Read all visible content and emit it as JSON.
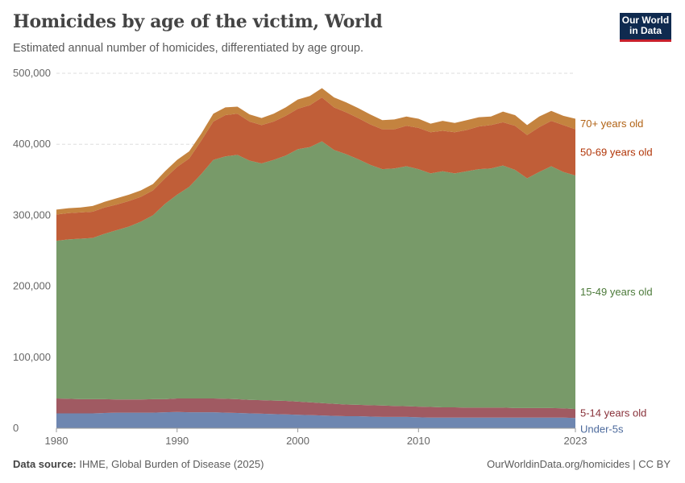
{
  "title": "Homicides by age of the victim, World",
  "subtitle": "Estimated annual number of homicides, differentiated by age group.",
  "logo": {
    "line1": "Our World",
    "line2": "in Data"
  },
  "footer": {
    "source_label": "Data source:",
    "source": "IHME, Global Burden of Disease (2025)",
    "link": "OurWorldinData.org/homicides | CC BY"
  },
  "chart_data": {
    "type": "area",
    "stacked": true,
    "xlim": [
      1980,
      2023
    ],
    "ylim": [
      0,
      500000
    ],
    "grid": true,
    "legend": "right-inline",
    "x_ticks": [
      "1980",
      "1990",
      "2000",
      "2010",
      "2023"
    ],
    "y_ticks": [
      "0",
      "100,000",
      "200,000",
      "300,000",
      "400,000",
      "500,000"
    ],
    "x": [
      1980,
      1981,
      1982,
      1983,
      1984,
      1985,
      1986,
      1987,
      1988,
      1989,
      1990,
      1991,
      1992,
      1993,
      1994,
      1995,
      1996,
      1997,
      1998,
      1999,
      2000,
      2001,
      2002,
      2003,
      2004,
      2005,
      2006,
      2007,
      2008,
      2009,
      2010,
      2011,
      2012,
      2013,
      2014,
      2015,
      2016,
      2017,
      2018,
      2019,
      2020,
      2021,
      2022,
      2023
    ],
    "series": [
      {
        "name": "Under-5s",
        "color": "#6e86b0",
        "label_color": "#4c6a9c",
        "values": [
          21000,
          21000,
          21000,
          21000,
          21500,
          22000,
          22000,
          22000,
          22000,
          22500,
          23000,
          22500,
          22500,
          22500,
          22000,
          21500,
          21000,
          20500,
          20000,
          19500,
          19000,
          18500,
          18000,
          17500,
          17000,
          17000,
          16500,
          16000,
          16000,
          16000,
          15500,
          15000,
          15000,
          15000,
          15000,
          15000,
          15000,
          15000,
          15000,
          15000,
          15000,
          15000,
          15000,
          14500
        ]
      },
      {
        "name": "5-14 years old",
        "color": "#a05a62",
        "label_color": "#883039",
        "values": [
          21000,
          20500,
          20000,
          20000,
          19500,
          18500,
          18500,
          18500,
          19000,
          18500,
          19000,
          19500,
          19500,
          19500,
          19500,
          19500,
          19000,
          19000,
          19000,
          19000,
          18500,
          18000,
          17500,
          17000,
          16500,
          16000,
          16000,
          16000,
          15500,
          15000,
          15000,
          15000,
          14500,
          14500,
          14000,
          14000,
          14000,
          14000,
          13500,
          13500,
          13500,
          13500,
          13000,
          12500
        ]
      },
      {
        "name": "15-49 years old",
        "color": "#789a69",
        "label_color": "#4c7a3a",
        "values": [
          222000,
          224500,
          226000,
          227000,
          233000,
          238500,
          243500,
          250500,
          259000,
          275000,
          287000,
          298000,
          316000,
          336000,
          341500,
          344000,
          337000,
          333500,
          339000,
          345500,
          355500,
          359500,
          368500,
          357500,
          352500,
          346000,
          338500,
          333000,
          334500,
          338000,
          334500,
          329000,
          332500,
          329500,
          333000,
          336000,
          337000,
          341000,
          335500,
          323500,
          332500,
          340500,
          333000,
          329000
        ]
      },
      {
        "name": "50-69 years old",
        "color": "#c05e38",
        "label_color": "#b13507",
        "values": [
          37000,
          37000,
          37000,
          37000,
          37000,
          36000,
          36000,
          35000,
          35000,
          36000,
          39000,
          40000,
          47000,
          54000,
          58000,
          58000,
          55000,
          54000,
          54000,
          56000,
          57000,
          59000,
          62000,
          60000,
          59000,
          58000,
          57000,
          56000,
          55000,
          57000,
          58000,
          58000,
          57000,
          58000,
          58000,
          60000,
          61000,
          61000,
          62000,
          61000,
          63000,
          64000,
          66000,
          65000
        ]
      },
      {
        "name": "70+ years old",
        "color": "#c4833f",
        "label_color": "#b16214",
        "values": [
          7000,
          7000,
          7000,
          8000,
          8000,
          9000,
          9000,
          9000,
          9000,
          10000,
          10000,
          10000,
          10000,
          11000,
          11000,
          10000,
          10000,
          10000,
          11000,
          12000,
          13000,
          13000,
          13000,
          14000,
          14000,
          14000,
          14000,
          13000,
          14000,
          13000,
          13000,
          12000,
          14000,
          13000,
          14000,
          13000,
          12000,
          15000,
          15000,
          14000,
          15000,
          14000,
          13000,
          15000
        ]
      }
    ]
  }
}
